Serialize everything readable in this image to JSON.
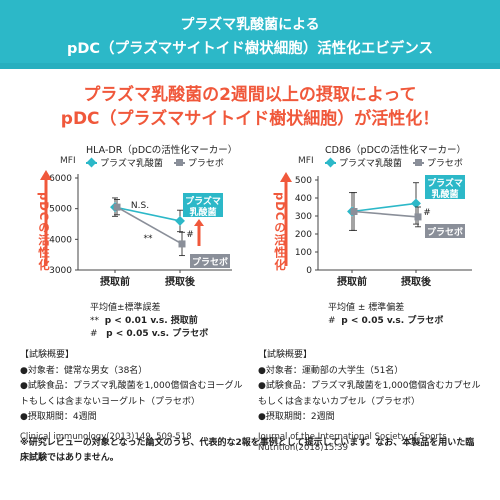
{
  "banner": {
    "line1": "プラズマ乳酸菌による",
    "line2": "pDC（プラズマサイトイド樹状細胞）活性化エビデンス"
  },
  "headline": {
    "line1": "プラズマ乳酸菌の2週間以上の摂取によって",
    "line2": "pDC（プラズマサイトイド樹状細胞）が活性化！"
  },
  "y_axis_label": "pDCの活性化",
  "legend": {
    "plasma": "プラズマ乳酸菌",
    "placebo": "プラセボ"
  },
  "colors": {
    "plasma": "#2cb8c8",
    "placebo": "#8a8f99",
    "accent": "#f0583b"
  },
  "chart_data": [
    {
      "type": "line",
      "title": "HLA-DR（pDCの活性化マーカー）",
      "ylabel_unit": "MFI",
      "categories": [
        "摂取前",
        "摂取後"
      ],
      "yticks": [
        3000,
        4000,
        5000,
        6000
      ],
      "ylim": [
        3000,
        6000
      ],
      "series": [
        {
          "name": "プラズマ乳酸菌",
          "values": [
            5050,
            4600
          ],
          "error": [
            300,
            350
          ]
        },
        {
          "name": "プラセボ",
          "values": [
            5050,
            3850
          ],
          "error": [
            250,
            380
          ]
        }
      ],
      "annotations": {
        "ns": "N.S.",
        "sig_star": "**",
        "sig_hash": "#"
      },
      "tags": {
        "plasma": "プラズマ\n乳酸菌",
        "placebo": "プラセボ"
      },
      "stats_title": "平均値±標準誤差",
      "stats": [
        {
          "mark": "**",
          "text": "p < 0.01 v.s. 摂取前"
        },
        {
          "mark": "#",
          "text": "p < 0.05 v.s. プラセボ"
        }
      ]
    },
    {
      "type": "line",
      "title": "CD86（pDCの活性化マーカー）",
      "ylabel_unit": "MFI",
      "categories": [
        "摂取前",
        "摂取後"
      ],
      "yticks": [
        0,
        100,
        200,
        300,
        400,
        500
      ],
      "ylim": [
        0,
        500
      ],
      "series": [
        {
          "name": "プラズマ乳酸菌",
          "values": [
            325,
            370
          ],
          "error": [
            105,
            115
          ]
        },
        {
          "name": "プラセボ",
          "values": [
            325,
            295
          ],
          "error": [
            105,
            55
          ]
        }
      ],
      "annotations": {
        "sig_hash": "#"
      },
      "tags": {
        "plasma": "プラズマ\n乳酸菌",
        "placebo": "プラセボ"
      },
      "stats_title": "平均値 ± 標準偏差",
      "stats": [
        {
          "mark": "#",
          "text": "p < 0.05 v.s. プラセボ"
        }
      ]
    }
  ],
  "study1": {
    "heading": "【試験概要】",
    "subjects": "●対象者：健常な男女（38名）",
    "food1": "●試験食品：プラズマ乳酸菌を1,000億個含むヨーグル",
    "food2": "トもしくは含まないヨーグルト（プラセボ）",
    "period": "●摂取期間：4週間",
    "ref": "Clinical immunology(2013)149, 509-518"
  },
  "study2": {
    "heading": "【試験概要】",
    "subjects": "●対象者：運動部の大学生（51名）",
    "food1": "●試験食品：プラズマ乳酸菌を1,000億個含むカプセル",
    "food2": "もしくは含まないカプセル（プラセボ）",
    "period": "●摂取期間：2週間",
    "ref1": "Journal of the International Society of Sports",
    "ref2": "Nutrition(2018)15:39"
  },
  "footnote": "※研究レビューの対象となった論文のうち、代表的な2報を事例として提示しています。なお、本製品を用いた臨床試験ではありません。"
}
